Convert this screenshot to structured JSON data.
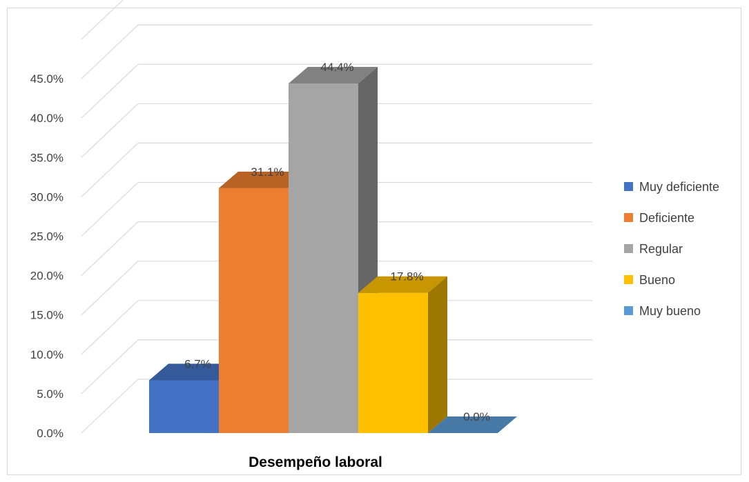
{
  "chart_data": {
    "type": "bar",
    "title": "",
    "xlabel": "Desempeño laboral",
    "ylabel": "",
    "ylim": [
      0,
      50
    ],
    "yticks": [
      "0.0%",
      "5.0%",
      "10.0%",
      "15.0%",
      "20.0%",
      "25.0%",
      "30.0%",
      "35.0%",
      "40.0%",
      "45.0%"
    ],
    "grid": true,
    "legend_position": "right",
    "series": [
      {
        "name": "Muy deficiente",
        "value": 6.7,
        "label": "6.7%",
        "color": "#4472c4"
      },
      {
        "name": "Deficiente",
        "value": 31.1,
        "label": "31.1%",
        "color": "#ed7d31"
      },
      {
        "name": "Regular",
        "value": 44.4,
        "label": "44.4%",
        "color": "#a5a5a5"
      },
      {
        "name": "Bueno",
        "value": 17.8,
        "label": "17.8%",
        "color": "#ffc000"
      },
      {
        "name": "Muy bueno",
        "value": 0.0,
        "label": "0.0%",
        "color": "#5b9bd5"
      }
    ]
  }
}
